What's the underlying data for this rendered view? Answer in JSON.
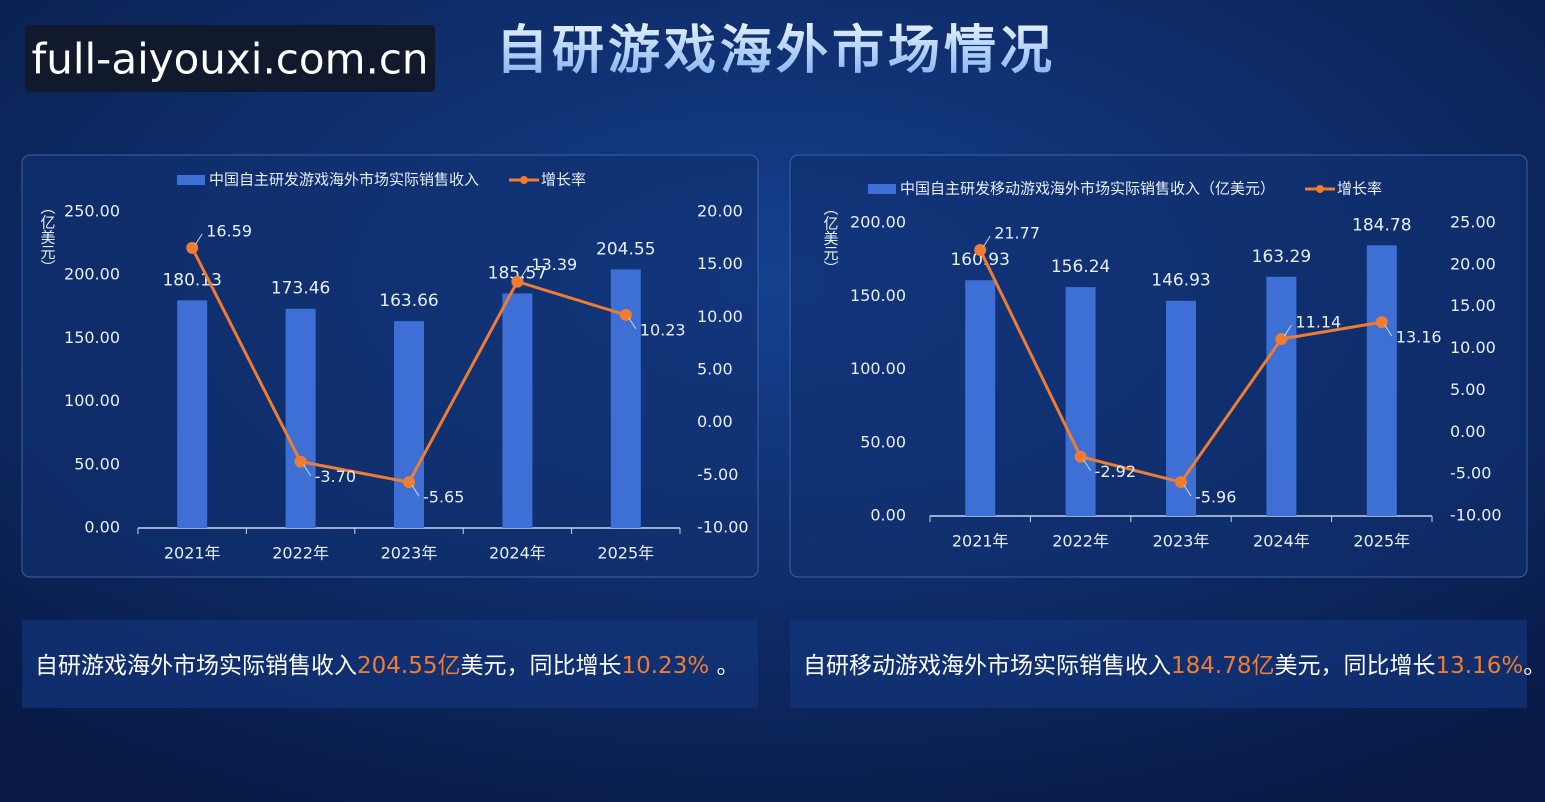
{
  "watermark": "full-aiyouxi.com.cn",
  "title": "自研游戏海外市场情况",
  "chart_data": [
    {
      "type": "bar-line",
      "y_label": "（亿美元）",
      "categories": [
        "2021年",
        "2022年",
        "2023年",
        "2024年",
        "2025年"
      ],
      "series": [
        {
          "name": "中国自主研发游戏海外市场实际销售收入",
          "type": "bar",
          "color": "#3d6fd4",
          "values": [
            180.13,
            173.46,
            163.66,
            185.57,
            204.55
          ]
        },
        {
          "name": "增长率",
          "type": "line",
          "axis": "y2",
          "color": "#ee7d33",
          "values": [
            16.59,
            -3.7,
            -5.65,
            13.39,
            10.23
          ],
          "value_labels": [
            "16.59",
            "-3.70",
            "-5.65",
            "13.39",
            "10.23"
          ]
        }
      ],
      "ylim": [
        0,
        250
      ],
      "yticks": [
        {
          "value": 0,
          "label": "0.00"
        },
        {
          "value": 50,
          "label": "50.00"
        },
        {
          "value": 100,
          "label": "100.00"
        },
        {
          "value": 150,
          "label": "150.00"
        },
        {
          "value": 200,
          "label": "200.00"
        },
        {
          "value": 250,
          "label": "250.00"
        }
      ],
      "y2lim": [
        -10,
        20
      ],
      "y2ticks": [
        {
          "value": -10,
          "label": "-10.00"
        },
        {
          "value": -5,
          "label": "-5.00"
        },
        {
          "value": 0,
          "label": "0.00"
        },
        {
          "value": 5,
          "label": "5.00"
        },
        {
          "value": 10,
          "label": "10.00"
        },
        {
          "value": 15,
          "label": "15.00"
        },
        {
          "value": 20,
          "label": "20.00"
        }
      ]
    },
    {
      "type": "bar-line",
      "y_label": "（亿美元）",
      "categories": [
        "2021年",
        "2022年",
        "2023年",
        "2024年",
        "2025年"
      ],
      "series": [
        {
          "name": "中国自主研发移动游戏海外市场实际销售收入（亿美元）",
          "type": "bar",
          "color": "#3d6fd4",
          "values": [
            160.93,
            156.24,
            146.93,
            163.29,
            184.78
          ]
        },
        {
          "name": "增长率",
          "type": "line",
          "axis": "y2",
          "color": "#ee7d33",
          "values": [
            21.77,
            -2.92,
            -5.96,
            11.14,
            13.16
          ]
        }
      ],
      "ylim": [
        0,
        200
      ],
      "yticks": [
        {
          "value": 0,
          "label": "0.00"
        },
        {
          "value": 50,
          "label": "50.00"
        },
        {
          "value": 100,
          "label": "100.00"
        },
        {
          "value": 150,
          "label": "150.00"
        },
        {
          "value": 200,
          "label": "200.00"
        }
      ],
      "y2lim": [
        -10,
        25
      ],
      "y2ticks": [
        {
          "value": -10,
          "label": "-10.00"
        },
        {
          "value": -5,
          "label": "-5.00"
        },
        {
          "value": 0,
          "label": "0.00"
        },
        {
          "value": 5,
          "label": "5.00"
        },
        {
          "value": 10,
          "label": "10.00"
        },
        {
          "value": 15,
          "label": "15.00"
        },
        {
          "value": 20,
          "label": "20.00"
        },
        {
          "value": 25,
          "label": "25.00"
        }
      ]
    }
  ],
  "summaries": [
    {
      "segments": [
        {
          "text": "自研游戏海外市场实际销售收入",
          "color": "#ffffff"
        },
        {
          "text": "204.55亿",
          "color": "#ee7d33"
        },
        {
          "text": "美元，同比增长",
          "color": "#ffffff"
        },
        {
          "text": "10.23%",
          "color": "#ee7d33"
        },
        {
          "text": " 。",
          "color": "#ffffff"
        }
      ]
    },
    {
      "segments": [
        {
          "text": "自研移动游戏海外市场实际销售收入",
          "color": "#ffffff"
        },
        {
          "text": "184.78亿",
          "color": "#ee7d33"
        },
        {
          "text": "美元，同比增长",
          "color": "#ffffff"
        },
        {
          "text": "13.16%",
          "color": "#ee7d33"
        },
        {
          "text": "。",
          "color": "#ffffff"
        }
      ]
    }
  ]
}
